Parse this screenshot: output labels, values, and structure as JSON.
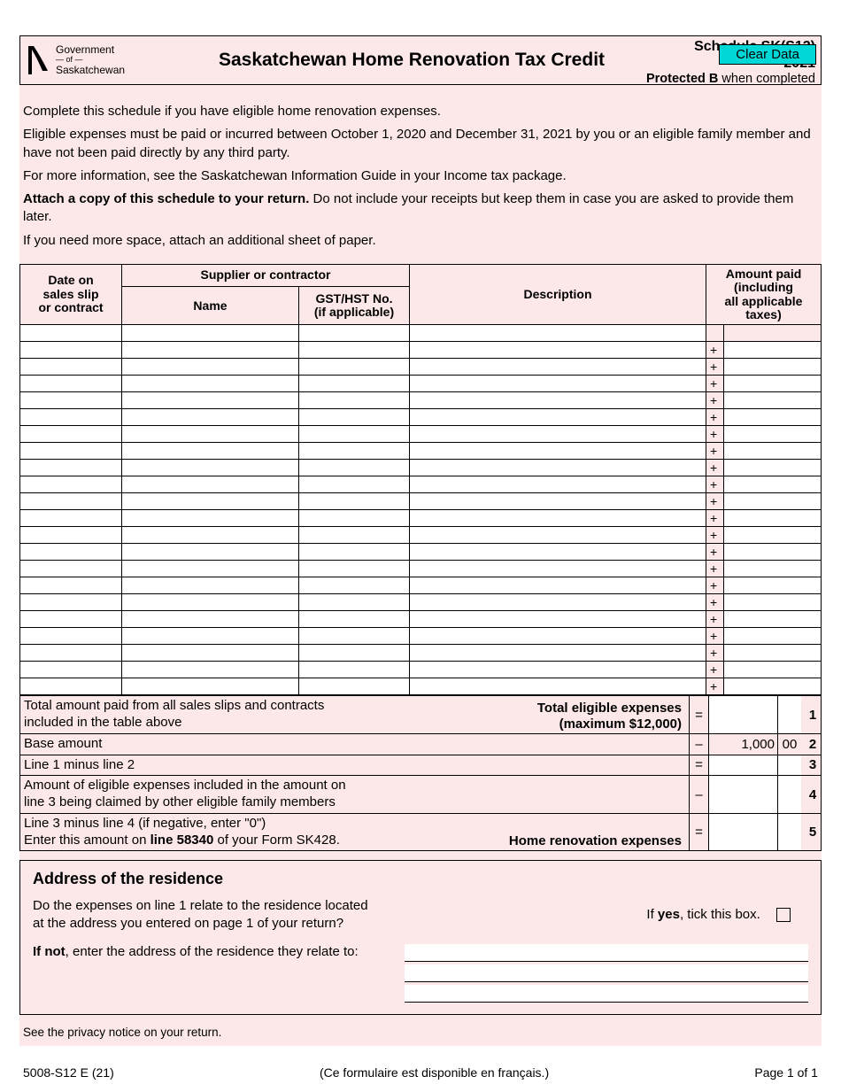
{
  "clear_button": "Clear Data",
  "logo": {
    "line1": "Government",
    "of": "— of —",
    "line2": "Saskatchewan"
  },
  "header": {
    "title": "Saskatchewan Home Renovation Tax Credit",
    "schedule": "Schedule SK(S12)",
    "year": "2021",
    "protected_prefix": "Protected B",
    "protected_suffix": " when completed"
  },
  "intro": {
    "p1": "Complete this schedule if you have eligible home renovation expenses.",
    "p2": "Eligible expenses must be paid or incurred between October 1, 2020 and December 31, 2021 by you or an eligible family member and have not been paid directly by any third party.",
    "p3": "For more information, see the Saskatchewan Information Guide in your Income tax package.",
    "p4_b": "Attach a copy of this schedule to your return.",
    "p4_r": " Do not include your receipts but keep them in case you are asked to provide them later.",
    "p5": "If you need more space, attach an additional sheet of paper."
  },
  "table": {
    "h_date_l1": "Date on",
    "h_date_l2": "sales slip",
    "h_date_l3": "or contract",
    "h_supplier": "Supplier or contractor",
    "h_name": "Name",
    "h_gst_l1": "GST/HST No.",
    "h_gst_l2": "(if applicable)",
    "h_desc": "Description",
    "h_amt_l1": "Amount paid",
    "h_amt_l2": "(including",
    "h_amt_l3": "all applicable",
    "h_amt_l4": "taxes)",
    "num_rows": 22
  },
  "calc": {
    "r1_left": "Total amount paid from all sales slips and contracts included in the table above",
    "r1_right_l1": "Total eligible expenses",
    "r1_right_l2": "(maximum $12,000)",
    "r1_op": "=",
    "r1_num": "1",
    "r2_left": "Base amount",
    "r2_op": "–",
    "r2_amt": "1,000",
    "r2_cents": "00",
    "r2_num": "2",
    "r3_left": "Line 1 minus line 2",
    "r3_op": "=",
    "r3_num": "3",
    "r4_left": "Amount of eligible expenses included in the amount on line 3 being claimed by other eligible family members",
    "r4_op": "–",
    "r4_num": "4",
    "r5_left_l1": "Line 3 minus line 4 (if negative, enter \"0\")",
    "r5_left_l2a": "Enter this amount on ",
    "r5_left_l2b": "line 58340",
    "r5_left_l2c": " of your Form SK428.",
    "r5_right": "Home renovation expenses",
    "r5_op": "=",
    "r5_num": "5"
  },
  "addr": {
    "heading": "Address of the residence",
    "q_l1": "Do the expenses on line 1 relate to the residence located",
    "q_l2": "at the address you entered on page 1 of your return?",
    "tick_pre": "If ",
    "tick_b": "yes",
    "tick_post": ", tick this box.",
    "ifnot_pre": "If not",
    "ifnot_post": ", enter the address of the residence they relate to:"
  },
  "privacy": "See the privacy notice on your return.",
  "footer": {
    "left": "5008-S12 E (21)",
    "center": "(Ce formulaire est disponible en français.)",
    "right": "Page 1 of 1"
  },
  "colors": {
    "form_bg": "#fce8e8",
    "clear_btn_bg": "#00d8d8",
    "border": "#000000"
  }
}
